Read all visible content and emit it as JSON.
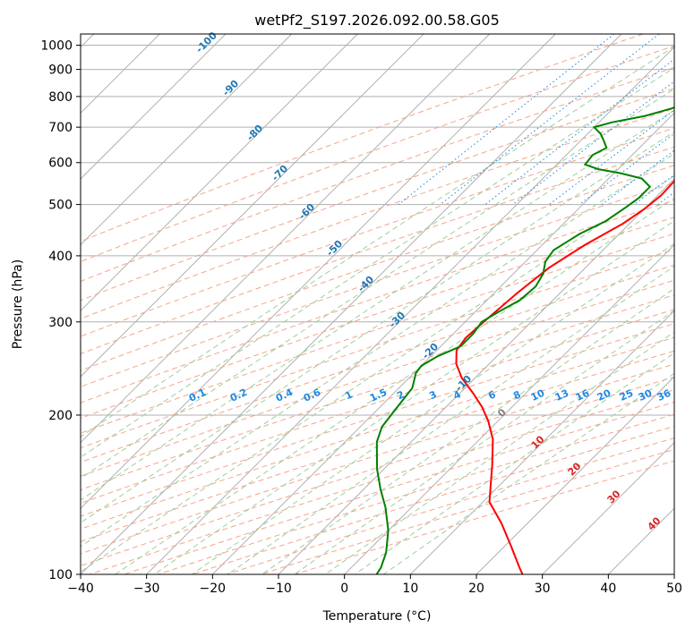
{
  "chart_data": {
    "type": "line",
    "title": "wetPf2_S197.2026.092.00.58.G05",
    "xlabel": "Temperature (°C)",
    "ylabel": "Pressure (hPa)",
    "xlim": [
      -40,
      50
    ],
    "ylim": [
      1050,
      100
    ],
    "y_scale": "log",
    "x_ticks": [
      -40,
      -30,
      -20,
      -10,
      0,
      10,
      20,
      30,
      40,
      50
    ],
    "y_ticks": [
      100,
      200,
      300,
      400,
      500,
      600,
      700,
      800,
      900,
      1000
    ],
    "grid": true,
    "series": [
      {
        "name": "",
        "color": "#ff0000",
        "points": [
          [
            -12.5,
            965
          ],
          [
            -13.5,
            945
          ],
          [
            -14.5,
            920
          ],
          [
            -14.3,
            895
          ],
          [
            -13,
            870
          ],
          [
            -11.3,
            840
          ],
          [
            -10,
            800
          ],
          [
            -9,
            760
          ],
          [
            -8.3,
            720
          ],
          [
            -8.5,
            680
          ],
          [
            -9.3,
            640
          ],
          [
            -9.8,
            600
          ],
          [
            -9.7,
            560
          ],
          [
            -9.5,
            520
          ],
          [
            -10,
            490
          ],
          [
            -11,
            460
          ],
          [
            -13.5,
            420
          ],
          [
            -15.5,
            380
          ],
          [
            -16.5,
            340
          ],
          [
            -17.2,
            300
          ],
          [
            -17.5,
            280
          ],
          [
            -17,
            265
          ],
          [
            -15,
            250
          ],
          [
            -12,
            235
          ],
          [
            -8,
            220
          ],
          [
            -4.5,
            207
          ],
          [
            -1.5,
            195
          ],
          [
            2,
            180
          ],
          [
            6,
            160
          ],
          [
            8.5,
            148
          ],
          [
            11,
            137
          ],
          [
            16,
            125
          ],
          [
            21,
            113
          ],
          [
            25.5,
            103
          ],
          [
            27.5,
            99
          ]
        ]
      },
      {
        "name": "",
        "color": "#008000",
        "points": [
          [
            -15.5,
            965
          ],
          [
            -16.5,
            955
          ],
          [
            -18,
            935
          ],
          [
            -18.5,
            915
          ],
          [
            -17.5,
            885
          ],
          [
            -17.5,
            855
          ],
          [
            -20.5,
            820
          ],
          [
            -20,
            790
          ],
          [
            -21,
            760
          ],
          [
            -24,
            735
          ],
          [
            -28,
            715
          ],
          [
            -30,
            700
          ],
          [
            -28,
            680
          ],
          [
            -26.5,
            660
          ],
          [
            -25,
            640
          ],
          [
            -26,
            620
          ],
          [
            -25.7,
            595
          ],
          [
            -23,
            583
          ],
          [
            -19,
            573
          ],
          [
            -15,
            560
          ],
          [
            -12.5,
            540
          ],
          [
            -12.5,
            515
          ],
          [
            -13,
            495
          ],
          [
            -14,
            465
          ],
          [
            -16,
            440
          ],
          [
            -17.5,
            410
          ],
          [
            -17,
            390
          ],
          [
            -15.5,
            370
          ],
          [
            -14.7,
            350
          ],
          [
            -15,
            330
          ],
          [
            -16.5,
            313
          ],
          [
            -17.5,
            300
          ],
          [
            -17,
            285
          ],
          [
            -17,
            270
          ],
          [
            -19,
            258
          ],
          [
            -20,
            248
          ],
          [
            -19.7,
            240
          ],
          [
            -18,
            225
          ],
          [
            -17.3,
            205
          ],
          [
            -16.7,
            190
          ],
          [
            -15.2,
            178
          ],
          [
            -11,
            158
          ],
          [
            -7.5,
            145
          ],
          [
            -4,
            134
          ],
          [
            0,
            121
          ],
          [
            3,
            110
          ],
          [
            4.5,
            103
          ],
          [
            5,
            99
          ]
        ]
      }
    ],
    "dry_adiabat_labels": [
      "-100",
      "-90",
      "-80",
      "-70",
      "-60",
      "-50",
      "-40",
      "-30",
      "-20",
      "-10",
      "0",
      "10",
      "20",
      "30",
      "40"
    ],
    "mixing_ratio_labels": [
      "0.1",
      "0.2",
      "0.4",
      "0.6",
      "1",
      "1.5",
      "2",
      "3",
      "4",
      "6",
      "8",
      "10",
      "13",
      "16",
      "20",
      "25",
      "30",
      "36"
    ],
    "mixing_ratio_values": [
      0.1,
      0.2,
      0.4,
      0.6,
      1,
      1.5,
      2,
      3,
      4,
      6,
      8,
      10,
      13,
      16,
      20,
      25,
      30,
      36
    ]
  }
}
